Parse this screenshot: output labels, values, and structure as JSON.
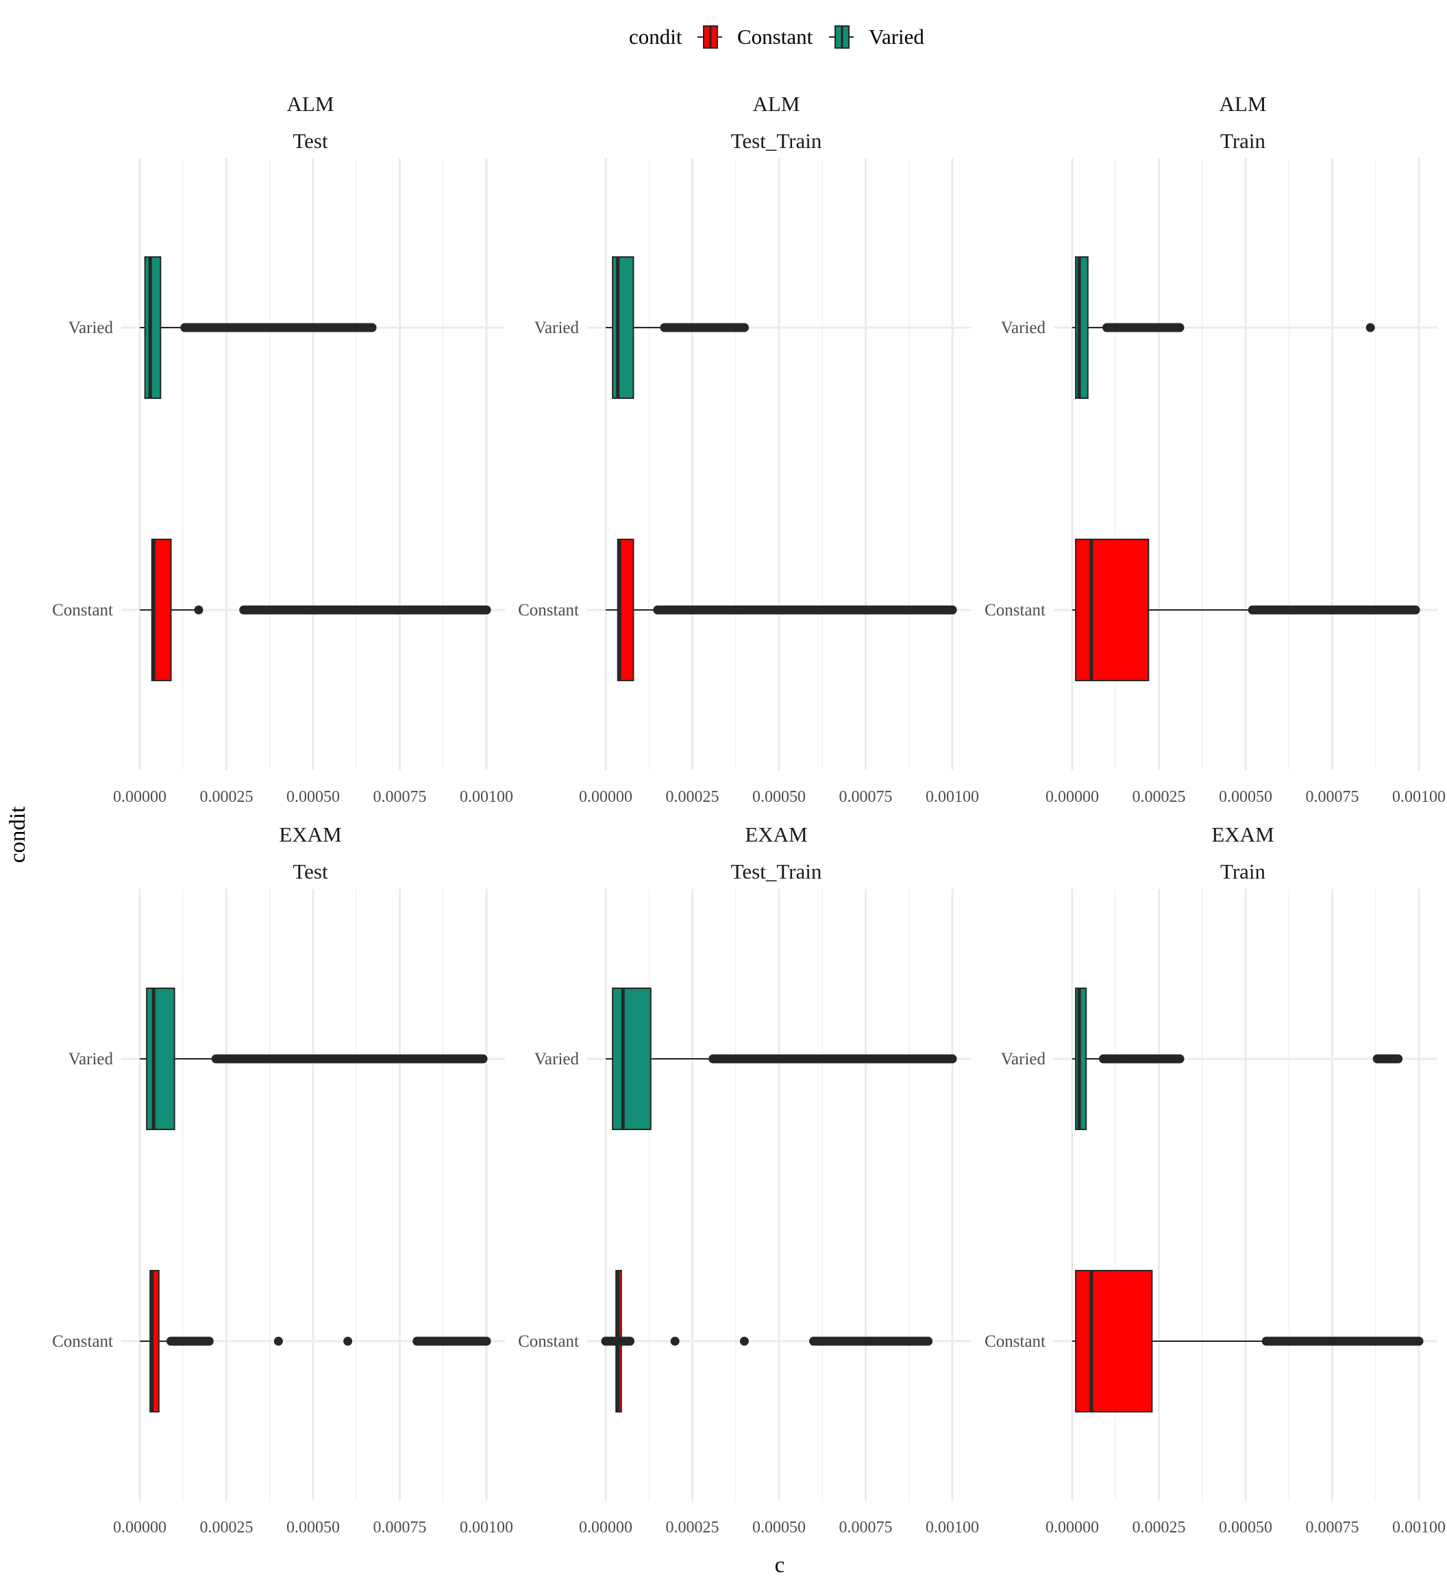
{
  "chart_data": {
    "type": "boxplot",
    "x_axis_title": "c",
    "y_axis_title": "condit",
    "xlim": [
      0,
      0.001
    ],
    "x_ticks": [
      0,
      0.00025,
      0.0005,
      0.00075,
      0.001
    ],
    "x_tick_labels": [
      "0.00000",
      "0.00025",
      "0.00050",
      "0.00075",
      "0.00100"
    ],
    "grid": true,
    "legend": {
      "position": "top",
      "title": "condit",
      "entries": [
        {
          "name": "Constant",
          "color": "#FF0000"
        },
        {
          "name": "Varied",
          "color": "#138D75"
        }
      ]
    },
    "categories": [
      "Varied",
      "Constant"
    ],
    "panels": [
      {
        "row_label": "ALM",
        "col_label": "Test",
        "boxes": [
          {
            "condit": "Varied",
            "lower_whisker": 0.0,
            "q1": 1.5e-05,
            "median": 3e-05,
            "q3": 6e-05,
            "upper_whisker": 0.00012,
            "outliers": [
              0.00013,
              0.00018,
              0.00023,
              0.00028,
              0.00032,
              0.00039,
              0.00044,
              0.00049,
              0.00054,
              0.0006,
              0.00063,
              0.00067
            ]
          },
          {
            "condit": "Constant",
            "lower_whisker": 0.0,
            "q1": 3.5e-05,
            "median": 4e-05,
            "q3": 9e-05,
            "upper_whisker": 0.00016,
            "outliers": [
              0.00017,
              0.0003,
              0.0004,
              0.0005,
              0.0006,
              0.0007,
              0.0008,
              0.00089,
              0.00091,
              0.001
            ]
          }
        ]
      },
      {
        "row_label": "ALM",
        "col_label": "Test_Train",
        "boxes": [
          {
            "condit": "Varied",
            "lower_whisker": 0.0,
            "q1": 2e-05,
            "median": 3.5e-05,
            "q3": 8e-05,
            "upper_whisker": 0.00016,
            "outliers": [
              0.00017,
              0.0002,
              0.00025,
              0.0003,
              0.00032,
              0.00036,
              0.0004
            ]
          },
          {
            "condit": "Constant",
            "lower_whisker": 0.0,
            "q1": 3.5e-05,
            "median": 4e-05,
            "q3": 8e-05,
            "upper_whisker": 0.00014,
            "outliers": [
              0.00015,
              0.00025,
              0.00035,
              0.00045,
              0.00055,
              0.00066,
              0.0007,
              0.00078,
              0.00085,
              0.00093,
              0.001
            ]
          }
        ]
      },
      {
        "row_label": "ALM",
        "col_label": "Train",
        "boxes": [
          {
            "condit": "Varied",
            "lower_whisker": 0.0,
            "q1": 1e-05,
            "median": 2e-05,
            "q3": 4.5e-05,
            "upper_whisker": 9e-05,
            "outliers": [
              0.0001,
              0.00015,
              0.0002,
              0.00025,
              0.00028,
              0.00031,
              0.00086
            ]
          },
          {
            "condit": "Constant",
            "lower_whisker": 0.0,
            "q1": 1e-05,
            "median": 5.5e-05,
            "q3": 0.00022,
            "upper_whisker": 0.00051,
            "outliers": [
              0.00052,
              0.0006,
              0.0007,
              0.0008,
              0.0009,
              0.00099
            ]
          }
        ]
      },
      {
        "row_label": "EXAM",
        "col_label": "Test",
        "boxes": [
          {
            "condit": "Varied",
            "lower_whisker": 0.0,
            "q1": 2e-05,
            "median": 4e-05,
            "q3": 0.0001,
            "upper_whisker": 0.00021,
            "outliers": [
              0.00022,
              0.0003,
              0.0004,
              0.0005,
              0.0006,
              0.0007,
              0.0008,
              0.0009,
              0.00099
            ]
          },
          {
            "condit": "Constant",
            "lower_whisker": 0.0,
            "q1": 3e-05,
            "median": 3.5e-05,
            "q3": 5.5e-05,
            "upper_whisker": 8e-05,
            "outliers": [
              9e-05,
              0.0002,
              0.0004,
              0.0006,
              0.0008,
              0.00084,
              0.00088,
              0.00092,
              0.00094,
              0.001
            ]
          }
        ]
      },
      {
        "row_label": "EXAM",
        "col_label": "Test_Train",
        "boxes": [
          {
            "condit": "Varied",
            "lower_whisker": 0.0,
            "q1": 2e-05,
            "median": 5e-05,
            "q3": 0.00013,
            "upper_whisker": 0.0003,
            "outliers": [
              0.00031,
              0.0004,
              0.0005,
              0.0006,
              0.0007,
              0.0008,
              0.00088,
              0.00095,
              0.001
            ]
          },
          {
            "condit": "Constant",
            "lower_whisker": 0.0,
            "q1": 3e-05,
            "median": 3.5e-05,
            "q3": 4.5e-05,
            "upper_whisker": 6e-05,
            "outliers": [
              0.0,
              1e-05,
              7e-05,
              0.0002,
              0.0004,
              0.0006,
              0.0007,
              0.00075,
              0.00082,
              0.00088,
              0.00093
            ]
          }
        ]
      },
      {
        "row_label": "EXAM",
        "col_label": "Train",
        "boxes": [
          {
            "condit": "Varied",
            "lower_whisker": 0.0,
            "q1": 1e-05,
            "median": 2e-05,
            "q3": 4e-05,
            "upper_whisker": 8e-05,
            "outliers": [
              9e-05,
              0.00015,
              0.0002,
              0.00025,
              0.00029,
              0.00031,
              0.00088,
              0.00092,
              0.00094
            ]
          },
          {
            "condit": "Constant",
            "lower_whisker": 0.0,
            "q1": 1e-05,
            "median": 5.5e-05,
            "q3": 0.00023,
            "upper_whisker": 0.00055,
            "outliers": [
              0.00056,
              0.00065,
              0.00075,
              0.00085,
              0.00095,
              0.001
            ]
          }
        ]
      }
    ]
  },
  "colors": {
    "Constant": "#FF0000",
    "Varied": "#138D75",
    "outline": "#262626",
    "grid": "#EBEBEB"
  }
}
